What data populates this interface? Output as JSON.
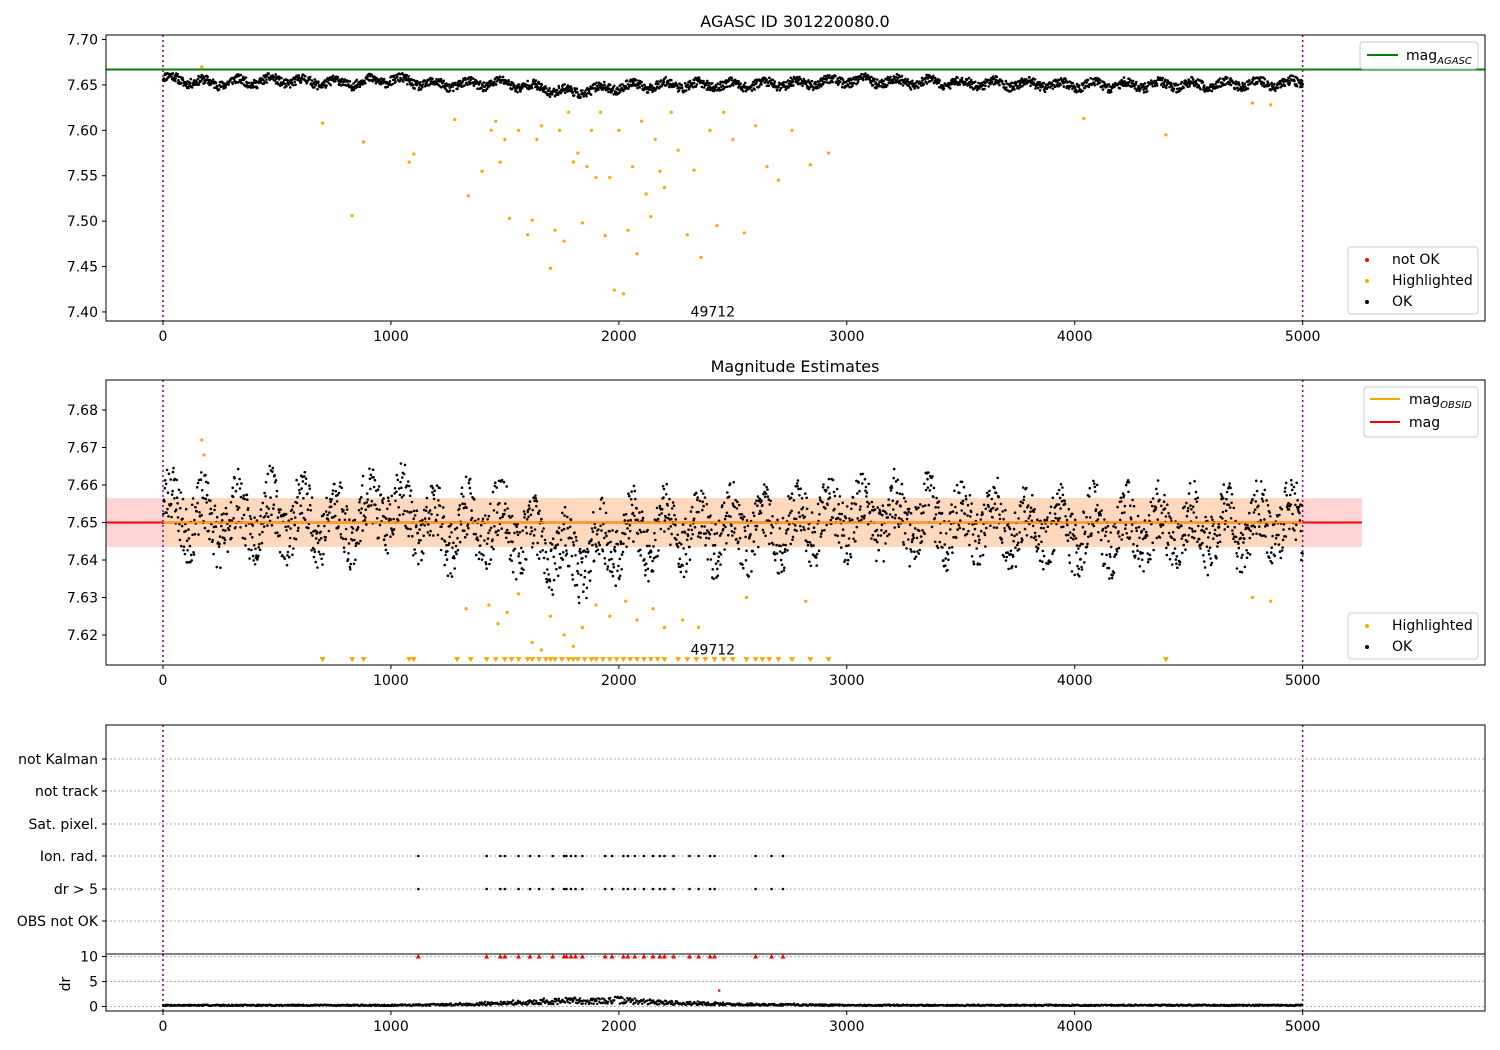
{
  "figure": {
    "background": "#ffffff"
  },
  "chart_data": [
    {
      "id": "p1",
      "type": "scatter",
      "title": "AGASC ID 301220080.0",
      "xlim": [
        -250,
        5800
      ],
      "ylim": [
        7.39,
        7.705
      ],
      "xticks": [
        0,
        1000,
        2000,
        3000,
        4000,
        5000
      ],
      "yticks": [
        7.4,
        7.45,
        7.5,
        7.55,
        7.6,
        7.65,
        7.7
      ],
      "ytick_labels": [
        "7.40",
        "7.45",
        "7.50",
        "7.55",
        "7.60",
        "7.65",
        "7.70"
      ],
      "vlines": [
        0,
        5000
      ],
      "vline_color": "#800080",
      "hline": {
        "y": 7.667,
        "x_range": [
          -250,
          5800
        ],
        "color": "#008000",
        "name": "mag",
        "subscript": "AGASC"
      },
      "annotation": {
        "x": 2500,
        "y": 7.395,
        "text": "49712"
      },
      "series": [
        {
          "name": "not OK",
          "color": "#ff0000",
          "x": [],
          "y": []
        },
        {
          "name": "Highlighted",
          "color": "#ffa500",
          "x": [
            170,
            700,
            830,
            880,
            1080,
            1100,
            1280,
            1340,
            1400,
            1440,
            1460,
            1480,
            1500,
            1520,
            1560,
            1600,
            1620,
            1640,
            1660,
            1700,
            1720,
            1740,
            1760,
            1780,
            1800,
            1820,
            1840,
            1860,
            1880,
            1900,
            1920,
            1940,
            1960,
            1980,
            2000,
            2020,
            2040,
            2060,
            2080,
            2100,
            2120,
            2140,
            2160,
            2180,
            2200,
            2230,
            2260,
            2300,
            2330,
            2360,
            2400,
            2430,
            2460,
            2500,
            2550,
            2600,
            2650,
            2700,
            2760,
            2840,
            2920,
            4040,
            4400,
            4780,
            4860
          ],
          "y": [
            7.67,
            7.608,
            7.506,
            7.587,
            7.565,
            7.574,
            7.612,
            7.528,
            7.555,
            7.6,
            7.61,
            7.565,
            7.59,
            7.503,
            7.6,
            7.485,
            7.501,
            7.59,
            7.605,
            7.448,
            7.49,
            7.6,
            7.478,
            7.62,
            7.565,
            7.575,
            7.498,
            7.56,
            7.6,
            7.548,
            7.62,
            7.484,
            7.548,
            7.424,
            7.6,
            7.42,
            7.49,
            7.56,
            7.464,
            7.61,
            7.53,
            7.505,
            7.59,
            7.555,
            7.537,
            7.62,
            7.578,
            7.485,
            7.556,
            7.46,
            7.6,
            7.495,
            7.62,
            7.59,
            7.487,
            7.605,
            7.56,
            7.545,
            7.6,
            7.562,
            7.575,
            7.613,
            7.595,
            7.63,
            7.628
          ]
        },
        {
          "name": "OK",
          "color": "#000000",
          "x": [
            0,
            200,
            500,
            800,
            1000,
            1200,
            1500,
            1700,
            1800,
            2000,
            2200,
            2500,
            2800,
            3000,
            3500,
            4000,
            4500,
            5000
          ],
          "y": [
            7.658,
            7.652,
            7.655,
            7.652,
            7.656,
            7.65,
            7.652,
            7.645,
            7.642,
            7.648,
            7.65,
            7.65,
            7.652,
            7.655,
            7.652,
            7.65,
            7.65,
            7.652
          ]
        }
      ]
    },
    {
      "id": "p2",
      "type": "scatter",
      "title": "Magnitude Estimates",
      "xlim": [
        -250,
        5800
      ],
      "ylim": [
        7.612,
        7.688
      ],
      "xticks": [
        0,
        1000,
        2000,
        3000,
        4000,
        5000
      ],
      "yticks": [
        7.62,
        7.63,
        7.64,
        7.65,
        7.66,
        7.67,
        7.68
      ],
      "ytick_labels": [
        "7.62",
        "7.63",
        "7.64",
        "7.65",
        "7.66",
        "7.67",
        "7.68"
      ],
      "vlines": [
        0,
        5000
      ],
      "vline_color": "#800080",
      "bands": [
        {
          "x_range": [
            -250,
            5260
          ],
          "y_range": [
            7.6435,
            7.6565
          ],
          "color": "#ffcccc"
        },
        {
          "x_range": [
            0,
            5000
          ],
          "y_range": [
            7.6435,
            7.6565
          ],
          "color": "#ffd8b8"
        }
      ],
      "lines": [
        {
          "name": "mag",
          "subscript": "OBSID",
          "color": "#ffa500",
          "x": [
            0,
            5000
          ],
          "y": [
            7.65,
            7.65
          ]
        },
        {
          "name": "mag",
          "subscript": "",
          "color": "#ff0000",
          "x": [
            -250,
            5260
          ],
          "y": [
            7.65,
            7.65
          ]
        }
      ],
      "annotation": {
        "x": 2500,
        "y": 7.614,
        "text": "49712"
      },
      "series": [
        {
          "name": "Highlighted",
          "color": "#ffa500",
          "x": [
            170,
            180,
            1330,
            1430,
            1470,
            1510,
            1560,
            1620,
            1660,
            1700,
            1760,
            1800,
            1840,
            1900,
            1960,
            2030,
            2080,
            2150,
            2200,
            2280,
            2350,
            2560,
            2820,
            4780,
            4860
          ],
          "y": [
            7.672,
            7.668,
            7.627,
            7.628,
            7.623,
            7.626,
            7.631,
            7.618,
            7.616,
            7.625,
            7.62,
            7.617,
            7.622,
            7.628,
            7.625,
            7.629,
            7.624,
            7.627,
            7.622,
            7.624,
            7.622,
            7.63,
            7.629,
            7.63,
            7.629
          ]
        },
        {
          "name": "OK",
          "color": "#000000",
          "x": [
            0,
            200,
            500,
            800,
            1000,
            1200,
            1500,
            1700,
            1800,
            2000,
            2200,
            2500,
            2800,
            3000,
            3500,
            4000,
            4500,
            5000
          ],
          "y": [
            7.654,
            7.65,
            7.652,
            7.65,
            7.655,
            7.648,
            7.65,
            7.643,
            7.64,
            7.646,
            7.648,
            7.648,
            7.65,
            7.652,
            7.65,
            7.648,
            7.648,
            7.65
          ]
        },
        {
          "name": "",
          "color": "#ffa500",
          "marker": "triangle-down",
          "y": 7.6133,
          "x": [
            700,
            830,
            880,
            1080,
            1100,
            1290,
            1350,
            1420,
            1460,
            1500,
            1530,
            1560,
            1600,
            1620,
            1650,
            1680,
            1700,
            1720,
            1750,
            1780,
            1800,
            1820,
            1850,
            1880,
            1900,
            1930,
            1960,
            1990,
            2020,
            2050,
            2080,
            2110,
            2140,
            2170,
            2200,
            2260,
            2300,
            2340,
            2380,
            2420,
            2460,
            2500,
            2560,
            2600,
            2630,
            2660,
            2700,
            2760,
            2840,
            2920,
            4400
          ]
        }
      ]
    },
    {
      "id": "p3",
      "type": "scatter",
      "xlim": [
        -250,
        5800
      ],
      "yticks": [
        0,
        1,
        2,
        3,
        4,
        5
      ],
      "ytick_labels": [
        "OBS not OK",
        "dr > 5",
        "Ion. rad.",
        "Sat. pixel.",
        "not track",
        "not Kalman"
      ],
      "vlines": [
        0,
        5000
      ],
      "vline_color": "#800080",
      "grid": true,
      "rows": [
        {
          "label": "Ion. rad.",
          "x": [
            1120,
            1420,
            1480,
            1500,
            1560,
            1610,
            1650,
            1710,
            1760,
            1770,
            1790,
            1810,
            1840,
            1940,
            1970,
            2020,
            2040,
            2070,
            2110,
            2150,
            2180,
            2200,
            2240,
            2310,
            2350,
            2400,
            2420,
            2600,
            2670,
            2720
          ]
        },
        {
          "label": "dr > 5",
          "x": [
            1120,
            1420,
            1480,
            1500,
            1560,
            1610,
            1650,
            1710,
            1760,
            1770,
            1790,
            1810,
            1840,
            1940,
            1970,
            2020,
            2040,
            2070,
            2110,
            2150,
            2180,
            2200,
            2240,
            2310,
            2350,
            2400,
            2420,
            2600,
            2670,
            2720
          ]
        }
      ]
    },
    {
      "id": "p4",
      "type": "scatter",
      "xlim": [
        -250,
        5800
      ],
      "ylim": [
        -0.5,
        10.5
      ],
      "xticks": [
        0,
        1000,
        2000,
        3000,
        4000,
        5000
      ],
      "yticks": [
        0,
        5,
        10
      ],
      "ytick_labels": [
        "0",
        "5",
        "10"
      ],
      "ylabel": "dr",
      "vlines": [
        0,
        5000
      ],
      "vline_color": "#800080",
      "grid": true,
      "capped_markers": {
        "y": 10,
        "color": "#ff0000",
        "x": [
          1120,
          1420,
          1480,
          1500,
          1560,
          1610,
          1650,
          1710,
          1760,
          1770,
          1790,
          1810,
          1840,
          1940,
          1970,
          2020,
          2040,
          2070,
          2110,
          2150,
          2180,
          2200,
          2240,
          2310,
          2350,
          2400,
          2420,
          2600,
          2670,
          2720
        ]
      },
      "outlier_points": {
        "color": "#ff0000",
        "x": [
          2440
        ],
        "y": [
          3.2
        ]
      },
      "series": [
        {
          "name": "dr",
          "color": "#000000",
          "x": [
            0,
            500,
            1000,
            1300,
            1500,
            1700,
            1800,
            1900,
            2000,
            2100,
            2200,
            2300,
            2500,
            2800,
            3000,
            4000,
            5000
          ],
          "y": [
            0.3,
            0.3,
            0.3,
            0.5,
            0.8,
            1.2,
            1.5,
            1.3,
            1.6,
            1.2,
            1.0,
            0.8,
            0.5,
            0.4,
            0.3,
            0.3,
            0.3
          ]
        }
      ]
    }
  ]
}
